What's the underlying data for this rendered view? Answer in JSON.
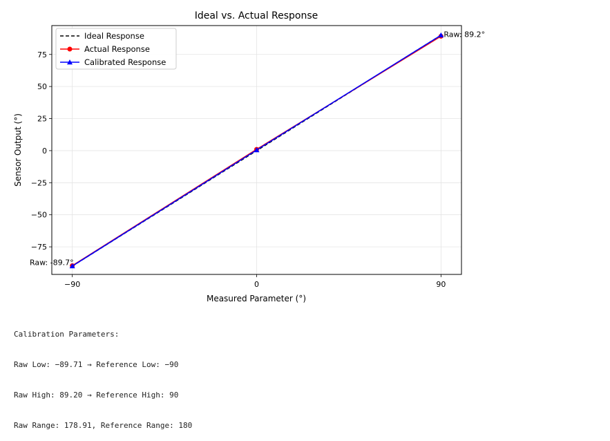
{
  "chart_data": {
    "type": "line",
    "title": "Ideal vs. Actual Response",
    "xlabel": "Measured Parameter (°)",
    "ylabel": "Sensor Output (°)",
    "xlim": [
      -100,
      100
    ],
    "ylim": [
      -96.5,
      97.5
    ],
    "xticks": [
      -90,
      0,
      90
    ],
    "xtick_labels": [
      "−90",
      "0",
      "90"
    ],
    "yticks": [
      -75,
      -50,
      -25,
      0,
      25,
      50,
      75
    ],
    "ytick_labels": [
      "−75",
      "−50",
      "−25",
      "0",
      "25",
      "50",
      "75"
    ],
    "grid": true,
    "legend_position": "top-left",
    "series": [
      {
        "name": "Ideal Response",
        "x": [
          -90,
          0,
          90
        ],
        "y": [
          -90,
          0,
          90
        ],
        "color": "#000000",
        "style": "dashed",
        "marker": "none"
      },
      {
        "name": "Actual Response",
        "x": [
          -90,
          0,
          90
        ],
        "y": [
          -89.7,
          1.0,
          89.2
        ],
        "color": "#ff0000",
        "style": "solid",
        "marker": "circle"
      },
      {
        "name": "Calibrated Response",
        "x": [
          -90,
          0,
          90
        ],
        "y": [
          -90,
          0.5,
          90
        ],
        "color": "#0000ff",
        "style": "solid",
        "marker": "triangle"
      }
    ],
    "annotations": [
      {
        "text": "Raw: -89.7°",
        "x": -90,
        "y": -89.7,
        "anchor": "end"
      },
      {
        "text": "Raw: 89.2°",
        "x": 90,
        "y": 89.2,
        "anchor": "start"
      }
    ]
  },
  "calibration": {
    "heading": "Calibration Parameters:",
    "lines": [
      "Raw Low: −89.71 → Reference Low: −90",
      "Raw High: 89.20 → Reference High: 90",
      "Raw Range: 178.91, Reference Range: 180"
    ]
  }
}
